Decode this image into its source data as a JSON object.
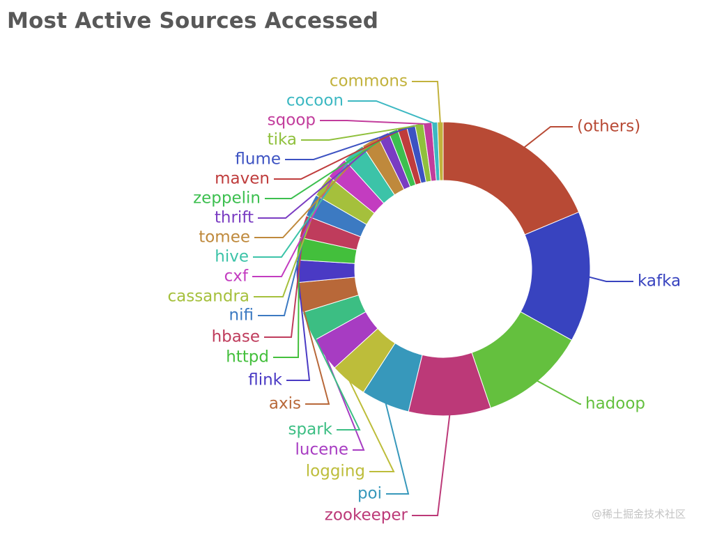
{
  "title": "Most Active Sources Accessed",
  "watermark": "@稀土掘金技术社区",
  "chart_data": {
    "type": "pie",
    "donut": true,
    "title": "Most Active Sources Accessed",
    "legend": "none",
    "slices": [
      {
        "label": "(others)",
        "value": 18.2,
        "color": "#b84a35"
      },
      {
        "label": "kafka",
        "value": 14.0,
        "color": "#3843bf"
      },
      {
        "label": "hadoop",
        "value": 11.4,
        "color": "#64c03e"
      },
      {
        "label": "zookeeper",
        "value": 8.8,
        "color": "#bc3978"
      },
      {
        "label": "poi",
        "value": 5.2,
        "color": "#3798bb"
      },
      {
        "label": "logging",
        "value": 4.0,
        "color": "#bdbd3a"
      },
      {
        "label": "lucene",
        "value": 3.6,
        "color": "#a73cc2"
      },
      {
        "label": "spark",
        "value": 3.2,
        "color": "#3cbe83"
      },
      {
        "label": "axis",
        "value": 3.2,
        "color": "#b86839"
      },
      {
        "label": "flink",
        "value": 2.4,
        "color": "#4a3ac4"
      },
      {
        "label": "httpd",
        "value": 2.4,
        "color": "#43bf3c"
      },
      {
        "label": "hbase",
        "value": 2.4,
        "color": "#bf3c5c"
      },
      {
        "label": "nifi",
        "value": 2.4,
        "color": "#3c7ac2"
      },
      {
        "label": "cassandra",
        "value": 2.4,
        "color": "#a5c03c"
      },
      {
        "label": "cxf",
        "value": 2.4,
        "color": "#c33cc0"
      },
      {
        "label": "hive",
        "value": 2.4,
        "color": "#3cc3a8"
      },
      {
        "label": "tomee",
        "value": 1.9,
        "color": "#bf893c"
      },
      {
        "label": "thrift",
        "value": 1.2,
        "color": "#7a3cc2"
      },
      {
        "label": "zeppelin",
        "value": 1.0,
        "color": "#3cbf4f"
      },
      {
        "label": "maven",
        "value": 1.0,
        "color": "#bf3c3c"
      },
      {
        "label": "flume",
        "value": 0.9,
        "color": "#3c52c2"
      },
      {
        "label": "tika",
        "value": 0.9,
        "color": "#8fc03c"
      },
      {
        "label": "sqoop",
        "value": 0.9,
        "color": "#c23c9c"
      },
      {
        "label": "cocoon",
        "value": 0.6,
        "color": "#3cb8c2"
      },
      {
        "label": "commons",
        "value": 0.6,
        "color": "#c2b23c"
      }
    ]
  }
}
